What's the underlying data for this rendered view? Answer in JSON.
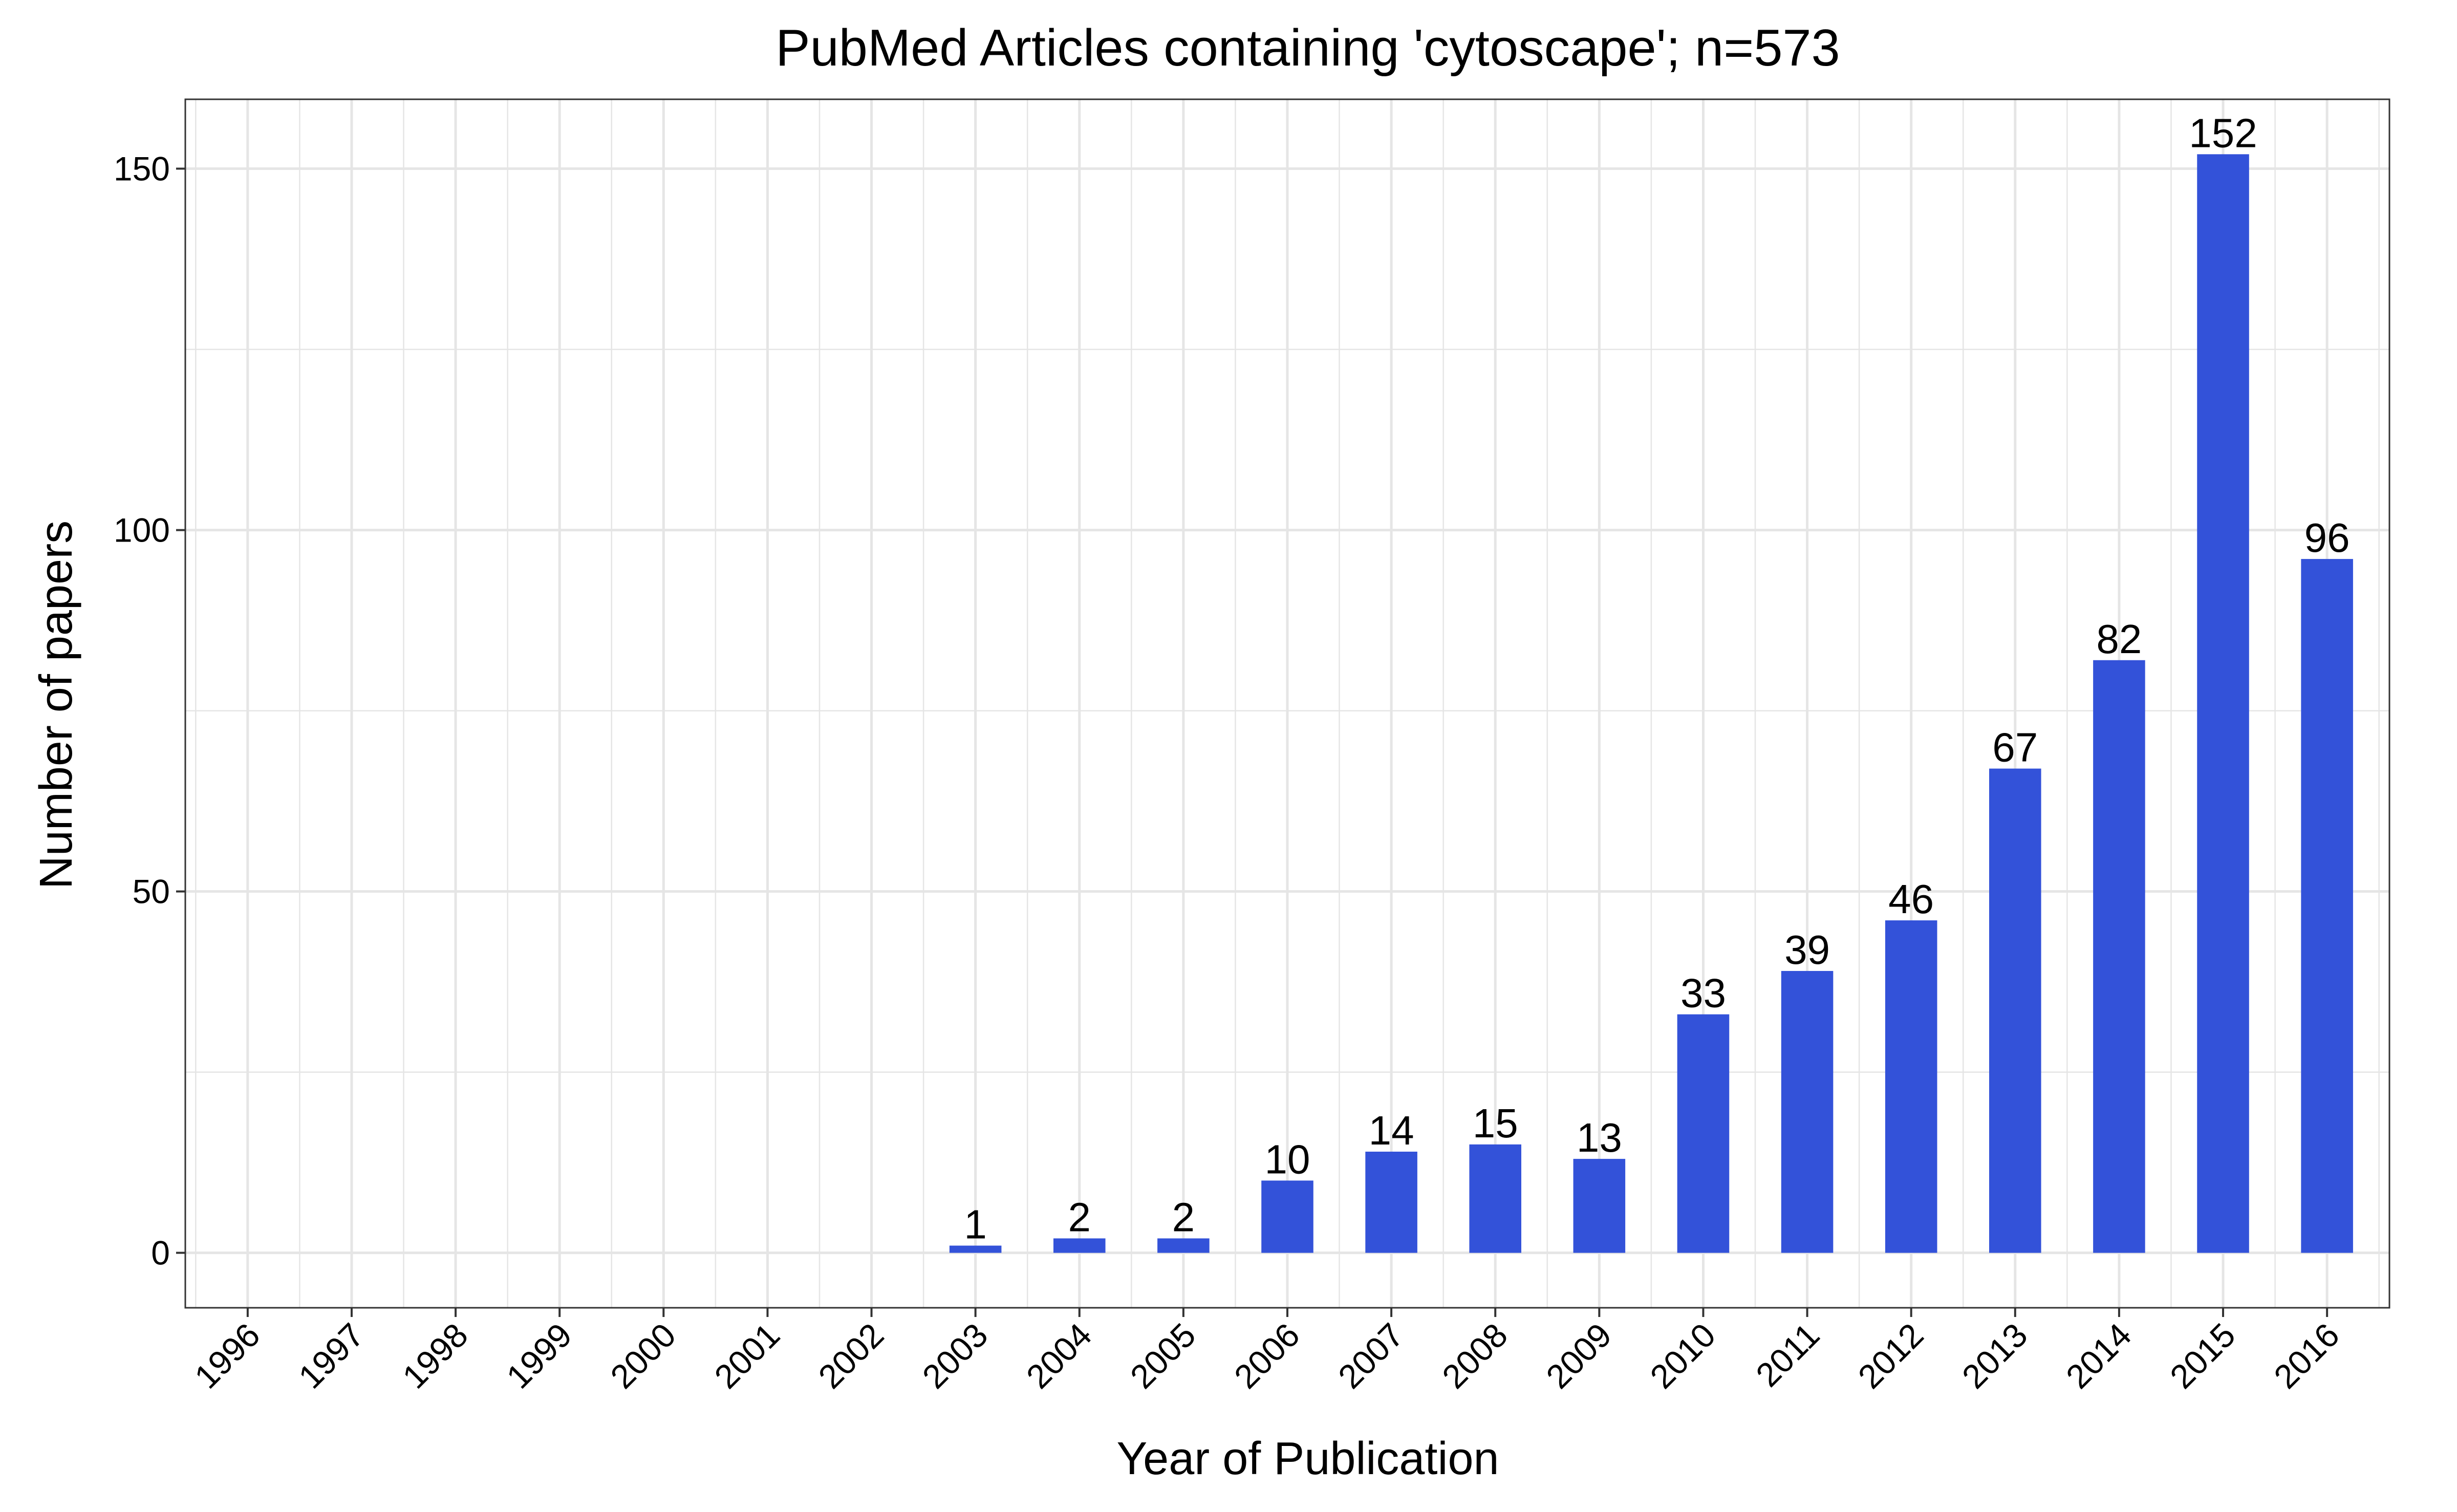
{
  "chart_data": {
    "type": "bar",
    "title": "PubMed Articles containing 'cytoscape'; n=573",
    "xlabel": "Year of Publication",
    "ylabel": "Number of papers",
    "categories": [
      "1996",
      "1997",
      "1998",
      "1999",
      "2000",
      "2001",
      "2002",
      "2003",
      "2004",
      "2005",
      "2006",
      "2007",
      "2008",
      "2009",
      "2010",
      "2011",
      "2012",
      "2013",
      "2014",
      "2015",
      "2016"
    ],
    "values": [
      0,
      0,
      0,
      0,
      0,
      0,
      0,
      1,
      2,
      2,
      10,
      14,
      15,
      13,
      33,
      39,
      46,
      67,
      82,
      152,
      96
    ],
    "data_labels": [
      "",
      "",
      "",
      "",
      "",
      "",
      "",
      "1",
      "2",
      "2",
      "10",
      "14",
      "15",
      "13",
      "33",
      "39",
      "46",
      "67",
      "82",
      "152",
      "96"
    ],
    "yticks": [
      0,
      50,
      100,
      150
    ],
    "ylim": [
      -7.6,
      159.6
    ],
    "grid": true,
    "bar_color": "#3352D9",
    "grid_color": "#E5E5E5",
    "panel_border_color": "#333333"
  }
}
